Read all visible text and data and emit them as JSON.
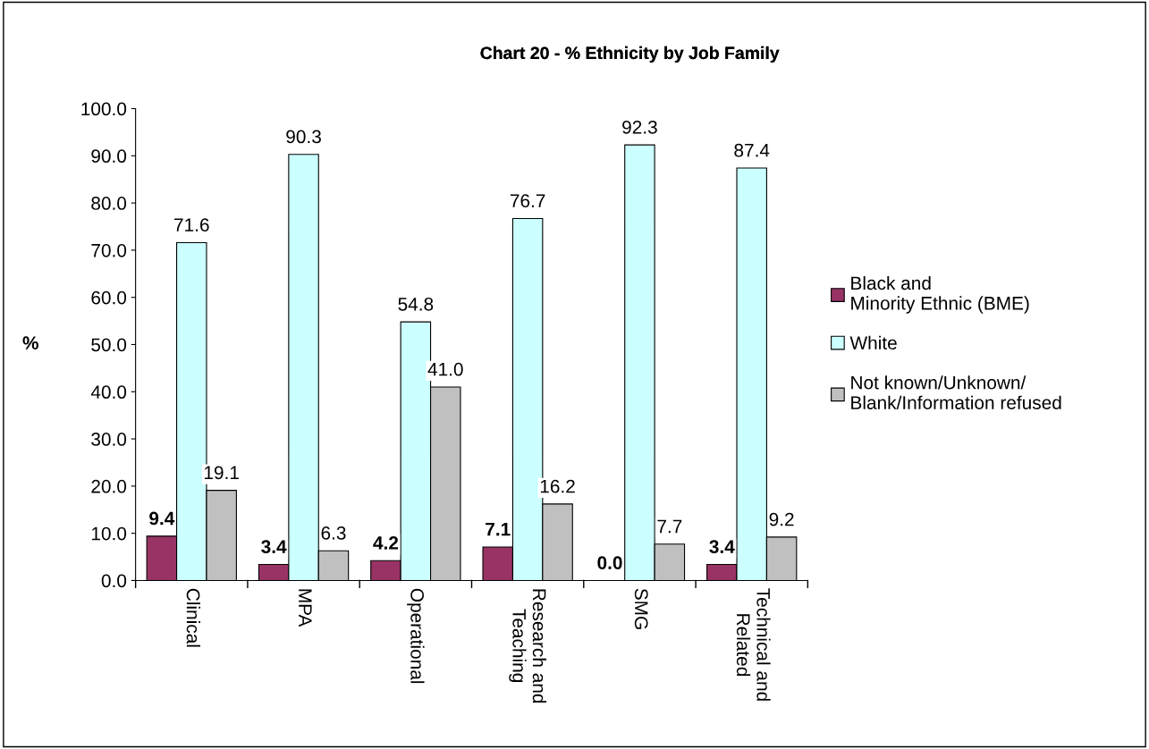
{
  "chart_data": {
    "type": "bar",
    "title": "Chart 20 - % Ethnicity by Job Family",
    "ylabel": "%",
    "categories": [
      "Clinical",
      "MPA",
      "Operational",
      "Research and\nTeaching",
      "SMG",
      "Technical and\nRelated"
    ],
    "series": [
      {
        "name": "Black and\nMinority Ethnic (BME)",
        "color": "#993366",
        "values": [
          9.4,
          3.4,
          4.2,
          7.1,
          0.0,
          3.4
        ],
        "value_labels": [
          "9.4",
          "3.4",
          "4.2",
          "7.1",
          "0.0",
          "3.4"
        ]
      },
      {
        "name": "White",
        "color": "#ccffff",
        "values": [
          71.6,
          90.3,
          54.8,
          76.7,
          92.3,
          87.4
        ],
        "value_labels": [
          "71.6",
          "90.3",
          "54.8",
          "76.7",
          "92.3",
          "87.4"
        ]
      },
      {
        "name": "Not known/Unknown/\nBlank/Information refused",
        "color": "#c0c0c0",
        "values": [
          19.1,
          6.3,
          41.0,
          16.2,
          7.7,
          9.2
        ],
        "value_labels": [
          "19.1",
          "6.3",
          "41.0",
          "16.2",
          "7.7",
          "9.2"
        ]
      }
    ],
    "ylim": [
      0,
      100
    ],
    "yticks": [
      {
        "value": 0,
        "label": "0.0"
      },
      {
        "value": 10,
        "label": "10.0"
      },
      {
        "value": 20,
        "label": "20.0"
      },
      {
        "value": 30,
        "label": "30.0"
      },
      {
        "value": 40,
        "label": "40.0"
      },
      {
        "value": 50,
        "label": "50.0"
      },
      {
        "value": 60,
        "label": "60.0"
      },
      {
        "value": 70,
        "label": "70.0"
      },
      {
        "value": 80,
        "label": "80.0"
      },
      {
        "value": 90,
        "label": "90.0"
      },
      {
        "value": 100,
        "label": "100.0"
      }
    ],
    "legend": "right",
    "grid": false
  }
}
